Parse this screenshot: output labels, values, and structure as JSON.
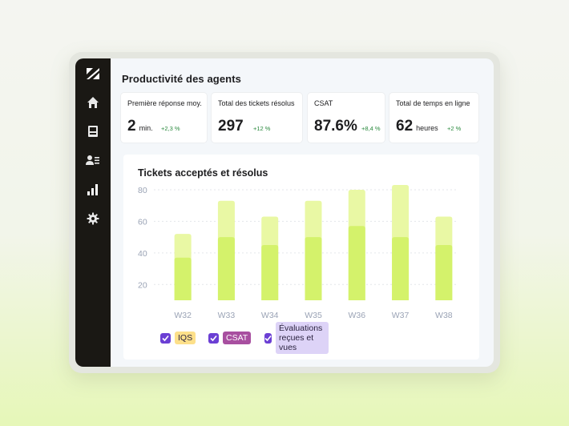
{
  "sidebar": {
    "icons": [
      "zendesk-logo-icon",
      "home-icon",
      "inbox-icon",
      "contacts-icon",
      "bar-chart-icon",
      "gear-icon"
    ]
  },
  "page": {
    "title": "Productivité des agents"
  },
  "metrics": [
    {
      "label": "Première réponse moy.",
      "value": "2",
      "unit": "min.",
      "change": "+2,3 %"
    },
    {
      "label": "Total des tickets résolus",
      "value": "297",
      "unit": "",
      "change": "+12 %"
    },
    {
      "label": "CSAT",
      "value": "87.6%",
      "unit": "",
      "change": "+8,4 %"
    },
    {
      "label": "Total de temps en ligne",
      "value": "62",
      "unit": "heures",
      "change": "+2 %"
    }
  ],
  "chart_data": {
    "type": "bar",
    "title": "Tickets acceptés et résolus",
    "categories": [
      "W32",
      "W33",
      "W34",
      "W35",
      "W36",
      "W37",
      "W38"
    ],
    "yticks": [
      20,
      40,
      60,
      80
    ],
    "ylim": [
      10,
      82
    ],
    "series": [
      {
        "values": [
          37,
          50,
          45,
          50,
          57,
          50,
          45
        ],
        "color": "#d4f26b"
      },
      {
        "values": [
          52,
          73,
          63,
          73,
          80,
          83,
          63
        ],
        "color": "#e9f8a4"
      }
    ],
    "grid": true
  },
  "legend": [
    {
      "label": "IQS",
      "color": "#fde08a",
      "checked": true
    },
    {
      "label": "CSAT",
      "color": "#a84fa0",
      "text_color": "#ffffff",
      "checked": true
    },
    {
      "label": "Évaluations reçues et vues",
      "color": "#ddd3f7",
      "checked": true
    }
  ]
}
